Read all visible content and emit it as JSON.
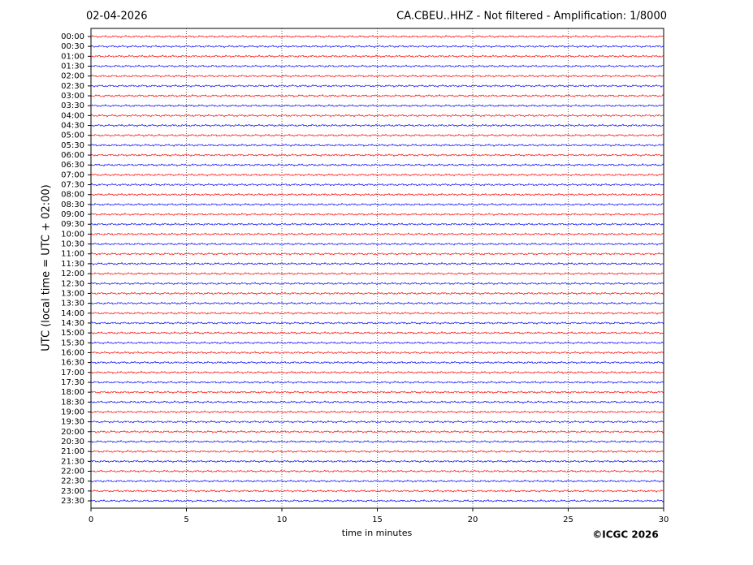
{
  "chart_data": {
    "type": "helicorder",
    "title": "CA.CBEU..HHZ - Not filtered - Amplification: 1/8000",
    "date": "02-04-2026",
    "ylabel": "UTC (local time = UTC + 02:00)",
    "xlabel": "time in minutes",
    "copyright": "©ICGC 2026",
    "categories": [
      "00:00",
      "00:30",
      "01:00",
      "01:30",
      "02:00",
      "02:30",
      "03:00",
      "03:30",
      "04:00",
      "04:30",
      "05:00",
      "05:30",
      "06:00",
      "06:30",
      "07:00",
      "07:30",
      "08:00",
      "08:30",
      "09:00",
      "09:30",
      "10:00",
      "10:30",
      "11:00",
      "11:30",
      "12:00",
      "12:30",
      "13:00",
      "13:30",
      "14:00",
      "14:30",
      "15:00",
      "15:30",
      "16:00",
      "16:30",
      "17:00",
      "17:30",
      "18:00",
      "18:30",
      "19:00",
      "19:30",
      "20:00",
      "20:30",
      "21:00",
      "21:30",
      "22:00",
      "22:30",
      "23:00",
      "23:30"
    ],
    "colors": [
      "#ff0000",
      "#0000ff"
    ],
    "xlim": [
      0,
      30
    ],
    "xticks": [
      0,
      5,
      10,
      15,
      20,
      25,
      30
    ],
    "grid": true
  }
}
